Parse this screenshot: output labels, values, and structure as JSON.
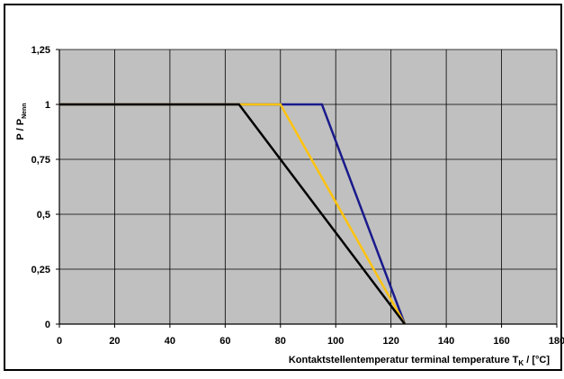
{
  "chart_data": {
    "type": "line",
    "title": "",
    "xlabel": "Kontaktstellentemperatur terminal temperature T",
    "xlabel_subscript": "K",
    "xlabel_suffix": " / [°C]",
    "ylabel": "P / P",
    "ylabel_subscript": "Nenn",
    "xlim": [
      0,
      180
    ],
    "ylim": [
      0,
      1.25
    ],
    "x_ticks": [
      0,
      20,
      40,
      60,
      80,
      100,
      120,
      140,
      160,
      180
    ],
    "x_tick_labels": [
      "0",
      "20",
      "40",
      "60",
      "80",
      "100",
      "120",
      "140",
      "160",
      "180"
    ],
    "y_ticks": [
      0,
      0.25,
      0.5,
      0.75,
      1,
      1.25
    ],
    "y_tick_labels": [
      "0",
      "0,25",
      "0,5",
      "0,75",
      "1",
      "1,25"
    ],
    "grid": true,
    "plot_background": "#c0c0c0",
    "grid_color": "#000000",
    "series": [
      {
        "color": "#1a1a8c",
        "x": [
          0,
          95,
          125
        ],
        "y": [
          1,
          1,
          0
        ]
      },
      {
        "color": "#ffc20e",
        "x": [
          0,
          80,
          125
        ],
        "y": [
          1,
          1,
          0
        ]
      },
      {
        "color": "#000000",
        "x": [
          0,
          65,
          125
        ],
        "y": [
          1,
          1,
          0
        ]
      }
    ]
  }
}
